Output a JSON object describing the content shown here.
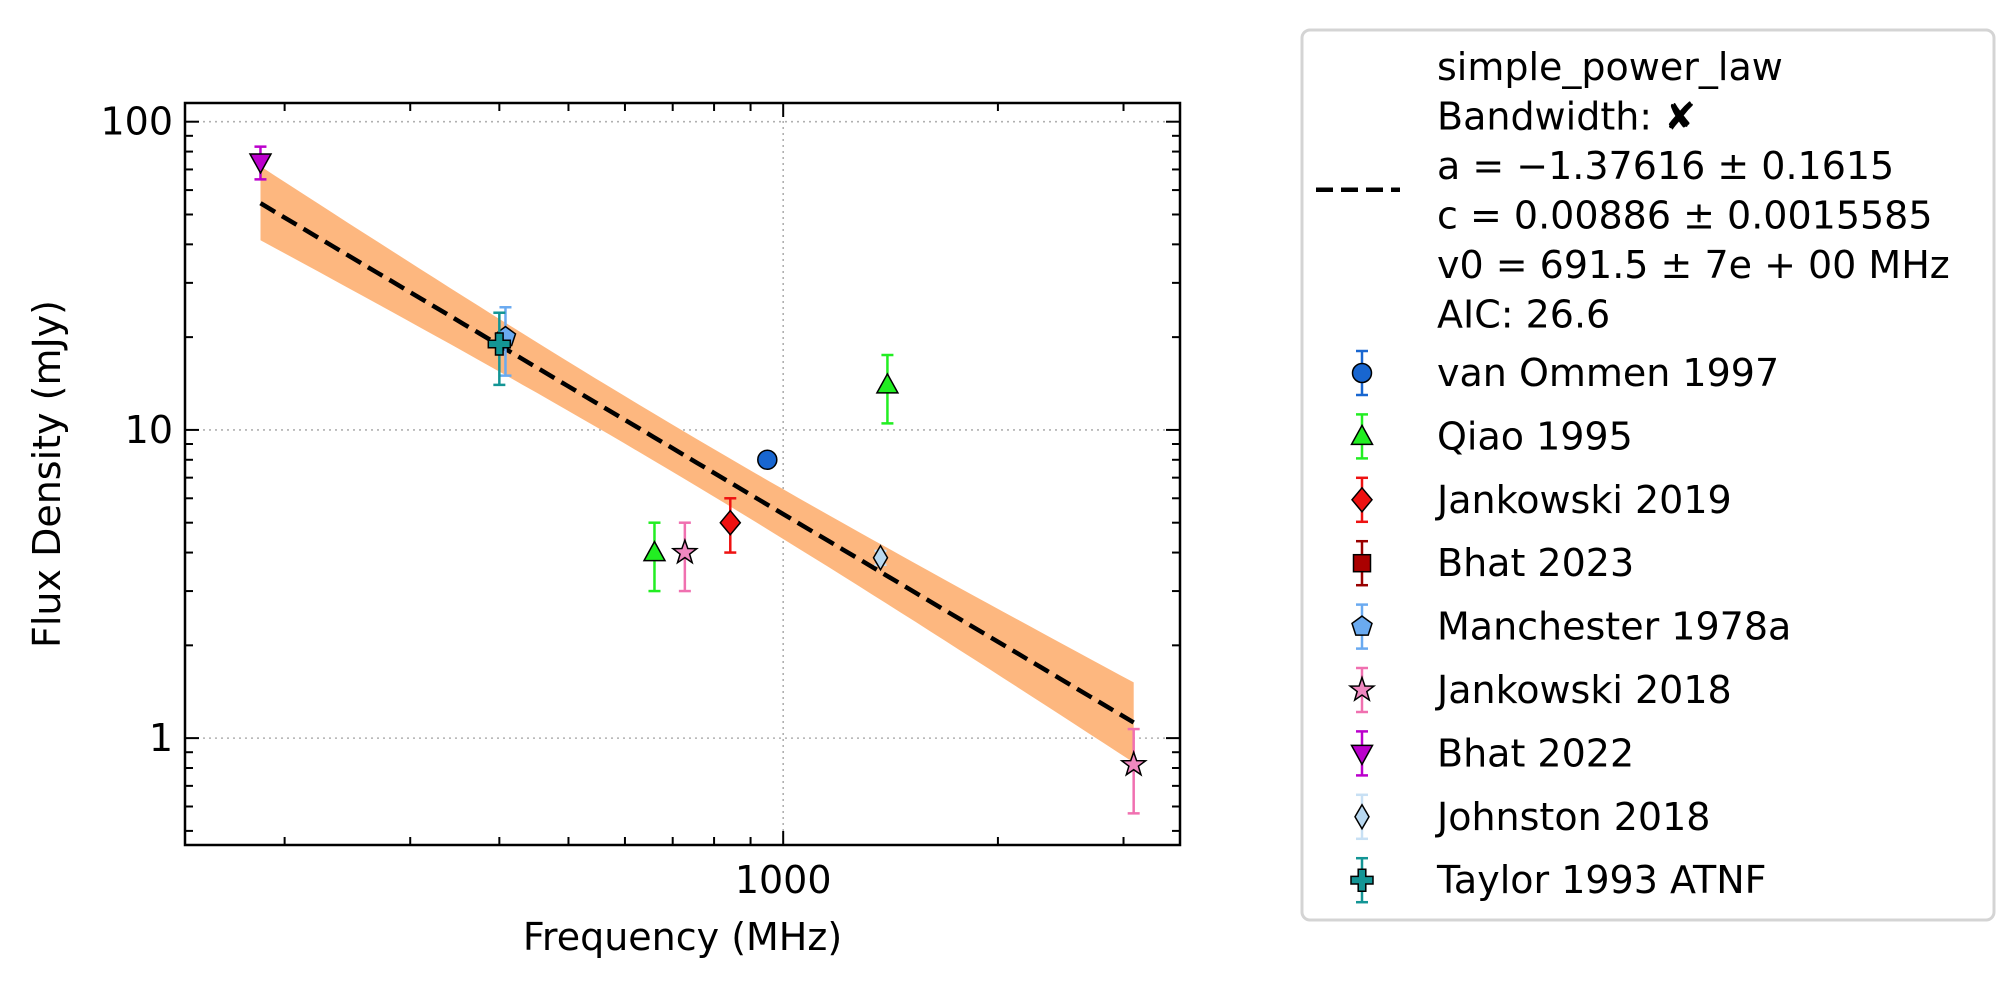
{
  "chart_data": {
    "type": "scatter",
    "title": "",
    "xlabel": "Frequency (MHz)",
    "ylabel": "Flux Density (mJy)",
    "x_scale": "log",
    "y_scale": "log",
    "xlim": [
      145,
      3600
    ],
    "ylim": [
      0.45,
      115
    ],
    "x_ticks": [
      {
        "value": 1000,
        "label": "1000"
      }
    ],
    "y_ticks": [
      {
        "value": 1,
        "label": "1"
      },
      {
        "value": 10,
        "label": "10"
      },
      {
        "value": 100,
        "label": "100"
      }
    ],
    "grid": true,
    "legend_position": "outside-right",
    "fit": {
      "model": "simple_power_law",
      "lines": [
        "simple_power_law",
        "Bandwidth: ✘",
        "a = −1.37616 ± 0.1615",
        "c = 0.00886 ± 0.0015585",
        "v0 = 691.5 ± 7e + 00 MHz",
        "AIC: 26.6"
      ],
      "a": -1.37616,
      "c": 0.00886,
      "v0": 691.5,
      "x_range": [
        185,
        3100
      ],
      "line_color": "#000000",
      "band_color": "#fdb77f"
    },
    "series": [
      {
        "name": "van Ommen 1997",
        "marker": "circle",
        "color": "#1866d0",
        "err_color": "#1866d0",
        "points": [
          {
            "x": 950,
            "y": 8.0,
            "yerr": 0
          }
        ]
      },
      {
        "name": "Qiao 1995",
        "marker": "triangle-up",
        "color": "#22ee22",
        "err_color": "#22ee22",
        "points": [
          {
            "x": 660,
            "y": 4.0,
            "yerr": 1.0
          },
          {
            "x": 1400,
            "y": 14.0,
            "yerr": 3.5
          }
        ]
      },
      {
        "name": "Jankowski 2019",
        "marker": "diamond",
        "color": "#ee1111",
        "err_color": "#ee1111",
        "points": [
          {
            "x": 843,
            "y": 5.0,
            "yerr": 1.0
          }
        ]
      },
      {
        "name": "Bhat 2023",
        "marker": "square",
        "color": "#aa0000",
        "err_color": "#990000",
        "points": []
      },
      {
        "name": "Manchester 1978a",
        "marker": "pentagon",
        "color": "#6aaaf0",
        "err_color": "#6aaaf0",
        "points": [
          {
            "x": 408,
            "y": 20.0,
            "yerr": 5.0
          }
        ]
      },
      {
        "name": "Jankowski 2018",
        "marker": "star",
        "color": "#f088c0",
        "err_color": "#f070b0",
        "points": [
          {
            "x": 728,
            "y": 4.0,
            "yerr": 1.0
          },
          {
            "x": 3100,
            "y": 0.82,
            "yerr": 0.25
          }
        ]
      },
      {
        "name": "Bhat 2022",
        "marker": "triangle-down",
        "color": "#bb00cc",
        "err_color": "#bb00cc",
        "points": [
          {
            "x": 185,
            "y": 74.0,
            "yerr": 9.0
          }
        ]
      },
      {
        "name": "Johnston 2018",
        "marker": "thin-diamond",
        "color": "#b8d8f0",
        "err_color": "#c8e0f4",
        "points": [
          {
            "x": 1369,
            "y": 3.85,
            "yerr": 0.2
          }
        ]
      },
      {
        "name": "Taylor 1993 ATNF",
        "marker": "plus-filled",
        "color": "#139595",
        "err_color": "#139595",
        "points": [
          {
            "x": 400,
            "y": 19.0,
            "yerr": 5.0
          }
        ]
      }
    ]
  }
}
